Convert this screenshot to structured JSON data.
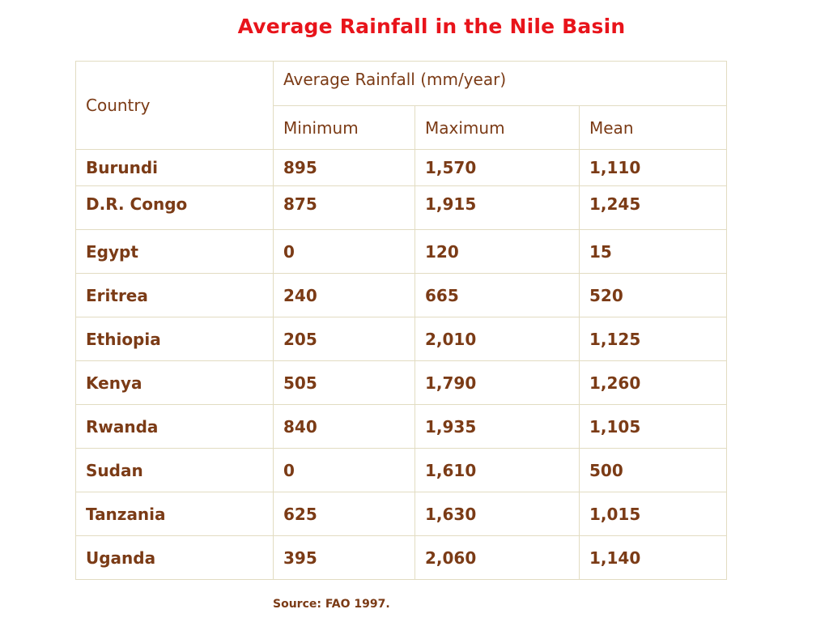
{
  "title": "Average Rainfall in the Nile Basin",
  "table": {
    "country_header": "Country",
    "group_header": "Average Rainfall (mm/year)",
    "sub_headers": [
      "Minimum",
      "Maximum",
      "Mean"
    ],
    "rows": [
      {
        "country": "Burundi",
        "minimum": "895",
        "maximum": "1,570",
        "mean": "1,110"
      },
      {
        "country": "D.R. Congo",
        "minimum": "875",
        "maximum": "1,915",
        "mean": "1,245"
      },
      {
        "country": "Egypt",
        "minimum": "0",
        "maximum": "120",
        "mean": "15"
      },
      {
        "country": "Eritrea",
        "minimum": "240",
        "maximum": "665",
        "mean": "520"
      },
      {
        "country": "Ethiopia",
        "minimum": "205",
        "maximum": "2,010",
        "mean": "1,125"
      },
      {
        "country": "Kenya",
        "minimum": "505",
        "maximum": "1,790",
        "mean": "1,260"
      },
      {
        "country": "Rwanda",
        "minimum": "840",
        "maximum": "1,935",
        "mean": "1,105"
      },
      {
        "country": "Sudan",
        "minimum": "0",
        "maximum": "1,610",
        "mean": "500"
      },
      {
        "country": "Tanzania",
        "minimum": "625",
        "maximum": "1,630",
        "mean": "1,015"
      },
      {
        "country": "Uganda",
        "minimum": "395",
        "maximum": "2,060",
        "mean": "1,140"
      }
    ]
  },
  "source": "Source: FAO 1997."
}
